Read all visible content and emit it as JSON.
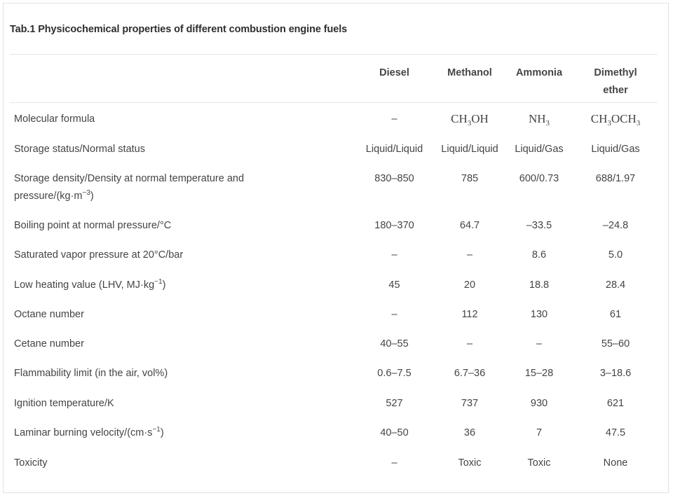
{
  "caption": "Tab.1 Physicochemical properties of different combustion engine fuels",
  "columns": [
    "Diesel",
    "Methanol",
    "Ammonia",
    "Dimethyl ether"
  ],
  "rows": [
    {
      "label": "Molecular formula",
      "cells": [
        "–",
        "CH3OH",
        "NH3",
        "CH3OCH3"
      ]
    },
    {
      "label": "Storage status/Normal status",
      "cells": [
        "Liquid/Liquid",
        "Liquid/Liquid",
        "Liquid/Gas",
        "Liquid/Gas"
      ]
    },
    {
      "label": "Storage density/Density at normal temperature and pressure/(kg·m−3)",
      "cells": [
        "830–850",
        "785",
        "600/0.73",
        "688/1.97"
      ]
    },
    {
      "label": "Boiling point at normal pressure/°C",
      "cells": [
        "180–370",
        "64.7",
        "–33.5",
        "–24.8"
      ]
    },
    {
      "label": "Saturated vapor pressure at 20°C/bar",
      "cells": [
        "–",
        "–",
        "8.6",
        "5.0"
      ]
    },
    {
      "label": "Low heating value (LHV, MJ·kg−1)",
      "cells": [
        "45",
        "20",
        "18.8",
        "28.4"
      ]
    },
    {
      "label": "Octane number",
      "cells": [
        "–",
        "112",
        "130",
        "61"
      ]
    },
    {
      "label": "Cetane number",
      "cells": [
        "40–55",
        "–",
        "–",
        "55–60"
      ]
    },
    {
      "label": "Flammability limit (in the air, vol%)",
      "cells": [
        "0.6–7.5",
        "6.7–36",
        "15–28",
        "3–18.6"
      ]
    },
    {
      "label": "Ignition temperature/K",
      "cells": [
        "527",
        "737",
        "930",
        "621"
      ]
    },
    {
      "label": "Laminar burning velocity/(cm·s−1)",
      "cells": [
        "40–50",
        "36",
        "7",
        "47.5"
      ]
    },
    {
      "label": "Toxicity",
      "cells": [
        "–",
        "Toxic",
        "Toxic",
        "None"
      ]
    }
  ]
}
